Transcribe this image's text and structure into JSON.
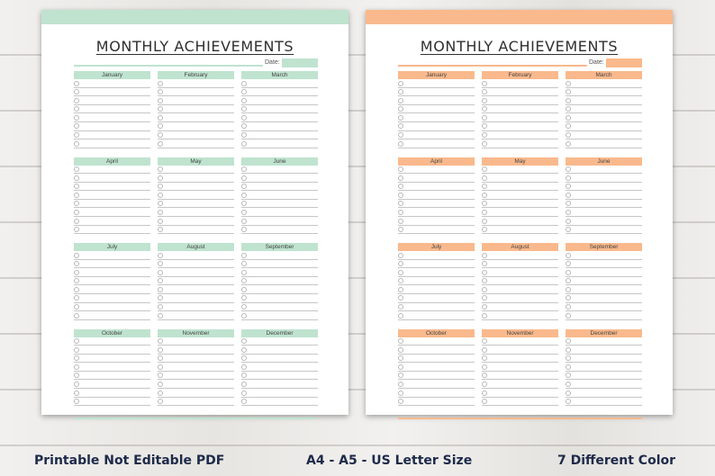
{
  "sheets": [
    {
      "title": "MONTHLY ACHIEVEMENTS",
      "date_label": "Date:",
      "color": "#bfe3cf",
      "months": [
        "January",
        "February",
        "March",
        "April",
        "May",
        "June",
        "July",
        "August",
        "September",
        "October",
        "November",
        "December"
      ]
    },
    {
      "title": "MONTHLY ACHIEVEMENTS",
      "date_label": "Date:",
      "color": "#f9b98c",
      "months": [
        "January",
        "February",
        "March",
        "April",
        "May",
        "June",
        "July",
        "August",
        "September",
        "October",
        "November",
        "December"
      ]
    }
  ],
  "captions": {
    "left": "Printable Not Editable PDF",
    "center": "A4 - A5 - US Letter Size",
    "right": "7 Different Color"
  }
}
